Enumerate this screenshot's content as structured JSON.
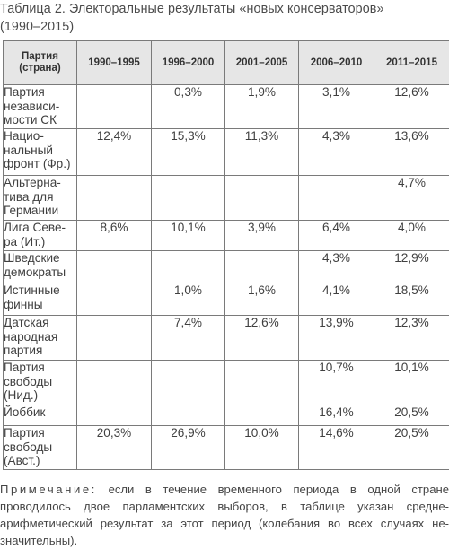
{
  "caption": {
    "line1": "Таблица 2. Электоральные результаты «новых консерваторов»",
    "line2": "(1990–2015)"
  },
  "table": {
    "header_party_line1": "Партия",
    "header_party_line2": "(страна)",
    "periods": [
      "1990–1995",
      "1996–2000",
      "2001–2005",
      "2006–2010",
      "2011–2015"
    ],
    "rows": [
      {
        "party": [
          "Партия",
          "независи-",
          "мости СК"
        ],
        "values": [
          "",
          "0,3%",
          "1,9%",
          "3,1%",
          "12,6%"
        ]
      },
      {
        "party": [
          "Нацио-",
          "нальный",
          "фронт (Фр.)"
        ],
        "values": [
          "12,4%",
          "15,3%",
          "11,3%",
          "4,3%",
          "13,6%"
        ]
      },
      {
        "party": [
          "Альтерна-",
          "тива для",
          "Германии"
        ],
        "values": [
          "",
          "",
          "",
          "",
          "4,7%"
        ]
      },
      {
        "party": [
          "Лига Севе-",
          "ра (Ит.)"
        ],
        "values": [
          "8,6%",
          "10,1%",
          "3,9%",
          "6,4%",
          "4,0%"
        ]
      },
      {
        "party": [
          "Шведские",
          "демократы"
        ],
        "values": [
          "",
          "",
          "",
          "4,3%",
          "12,9%"
        ]
      },
      {
        "party": [
          "Истинные",
          "финны"
        ],
        "values": [
          "",
          "1,0%",
          "1,6%",
          "4,1%",
          "18,5%"
        ]
      },
      {
        "party": [
          "Датская",
          "народная",
          "партия"
        ],
        "values": [
          "",
          "7,4%",
          "12,6%",
          "13,9%",
          "12,3%"
        ]
      },
      {
        "party": [
          "Партия",
          "свободы",
          "(Нид.)"
        ],
        "values": [
          "",
          "",
          "",
          "10,7%",
          "10,1%"
        ]
      },
      {
        "party": [
          "Йоббик"
        ],
        "values": [
          "",
          "",
          "",
          "16,4%",
          "20,5%"
        ]
      },
      {
        "party": [
          "Партия",
          "свободы",
          "(Авст.)"
        ],
        "values": [
          "20,3%",
          "26,9%",
          "10,0%",
          "14,6%",
          "20,5%"
        ]
      }
    ]
  },
  "note": {
    "label": "Примечание:",
    "line1_rest": "если в течение временного периода в одной стране",
    "line2": "проводилось двое парламентских выборов, в таблице указан средне-",
    "line3": "арифметический результат за этот период (колебания во всех случаях не-",
    "line4": "значительны)."
  }
}
